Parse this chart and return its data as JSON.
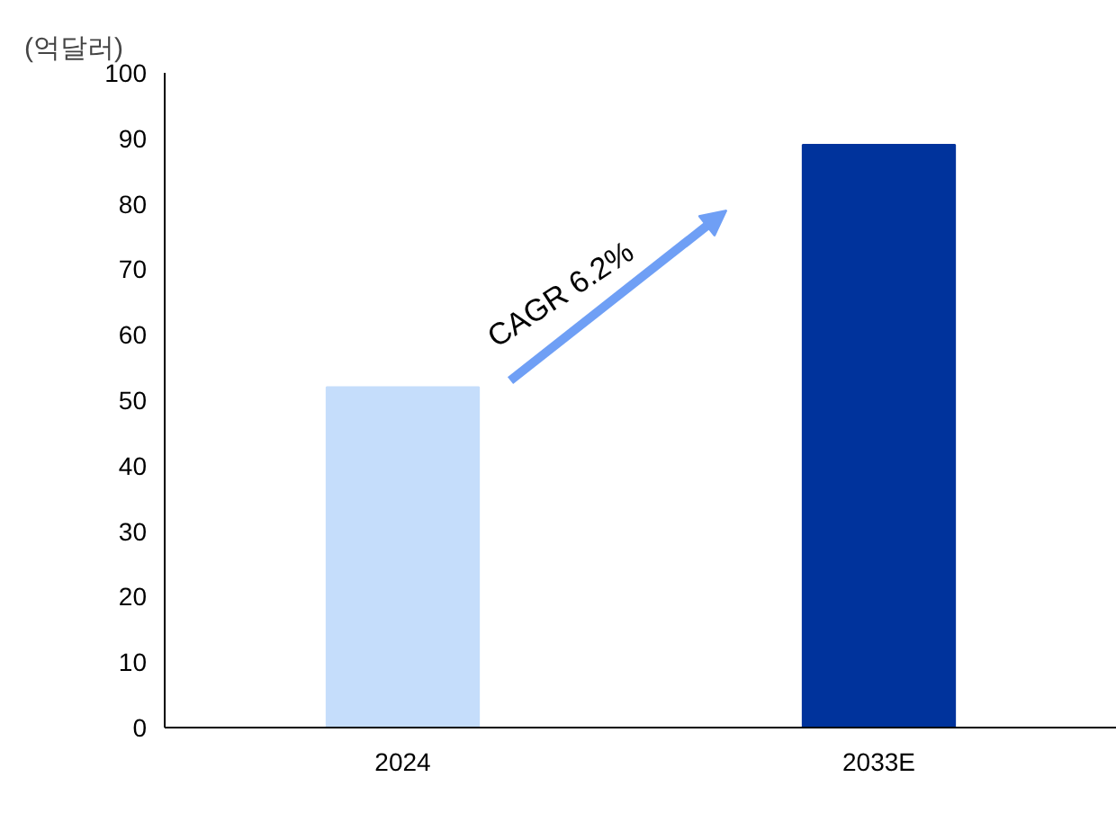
{
  "chart_data": {
    "type": "bar",
    "ylabel": "(억달러)",
    "categories": [
      "2024",
      "2033E"
    ],
    "values": [
      52,
      89
    ],
    "colors": [
      "#c5ddfb",
      "#00339c"
    ],
    "ylim": [
      0,
      100
    ],
    "yticks": [
      0,
      10,
      20,
      30,
      40,
      50,
      60,
      70,
      80,
      90,
      100
    ],
    "annotations": [
      "CAGR 6.2%"
    ],
    "grid": false
  }
}
